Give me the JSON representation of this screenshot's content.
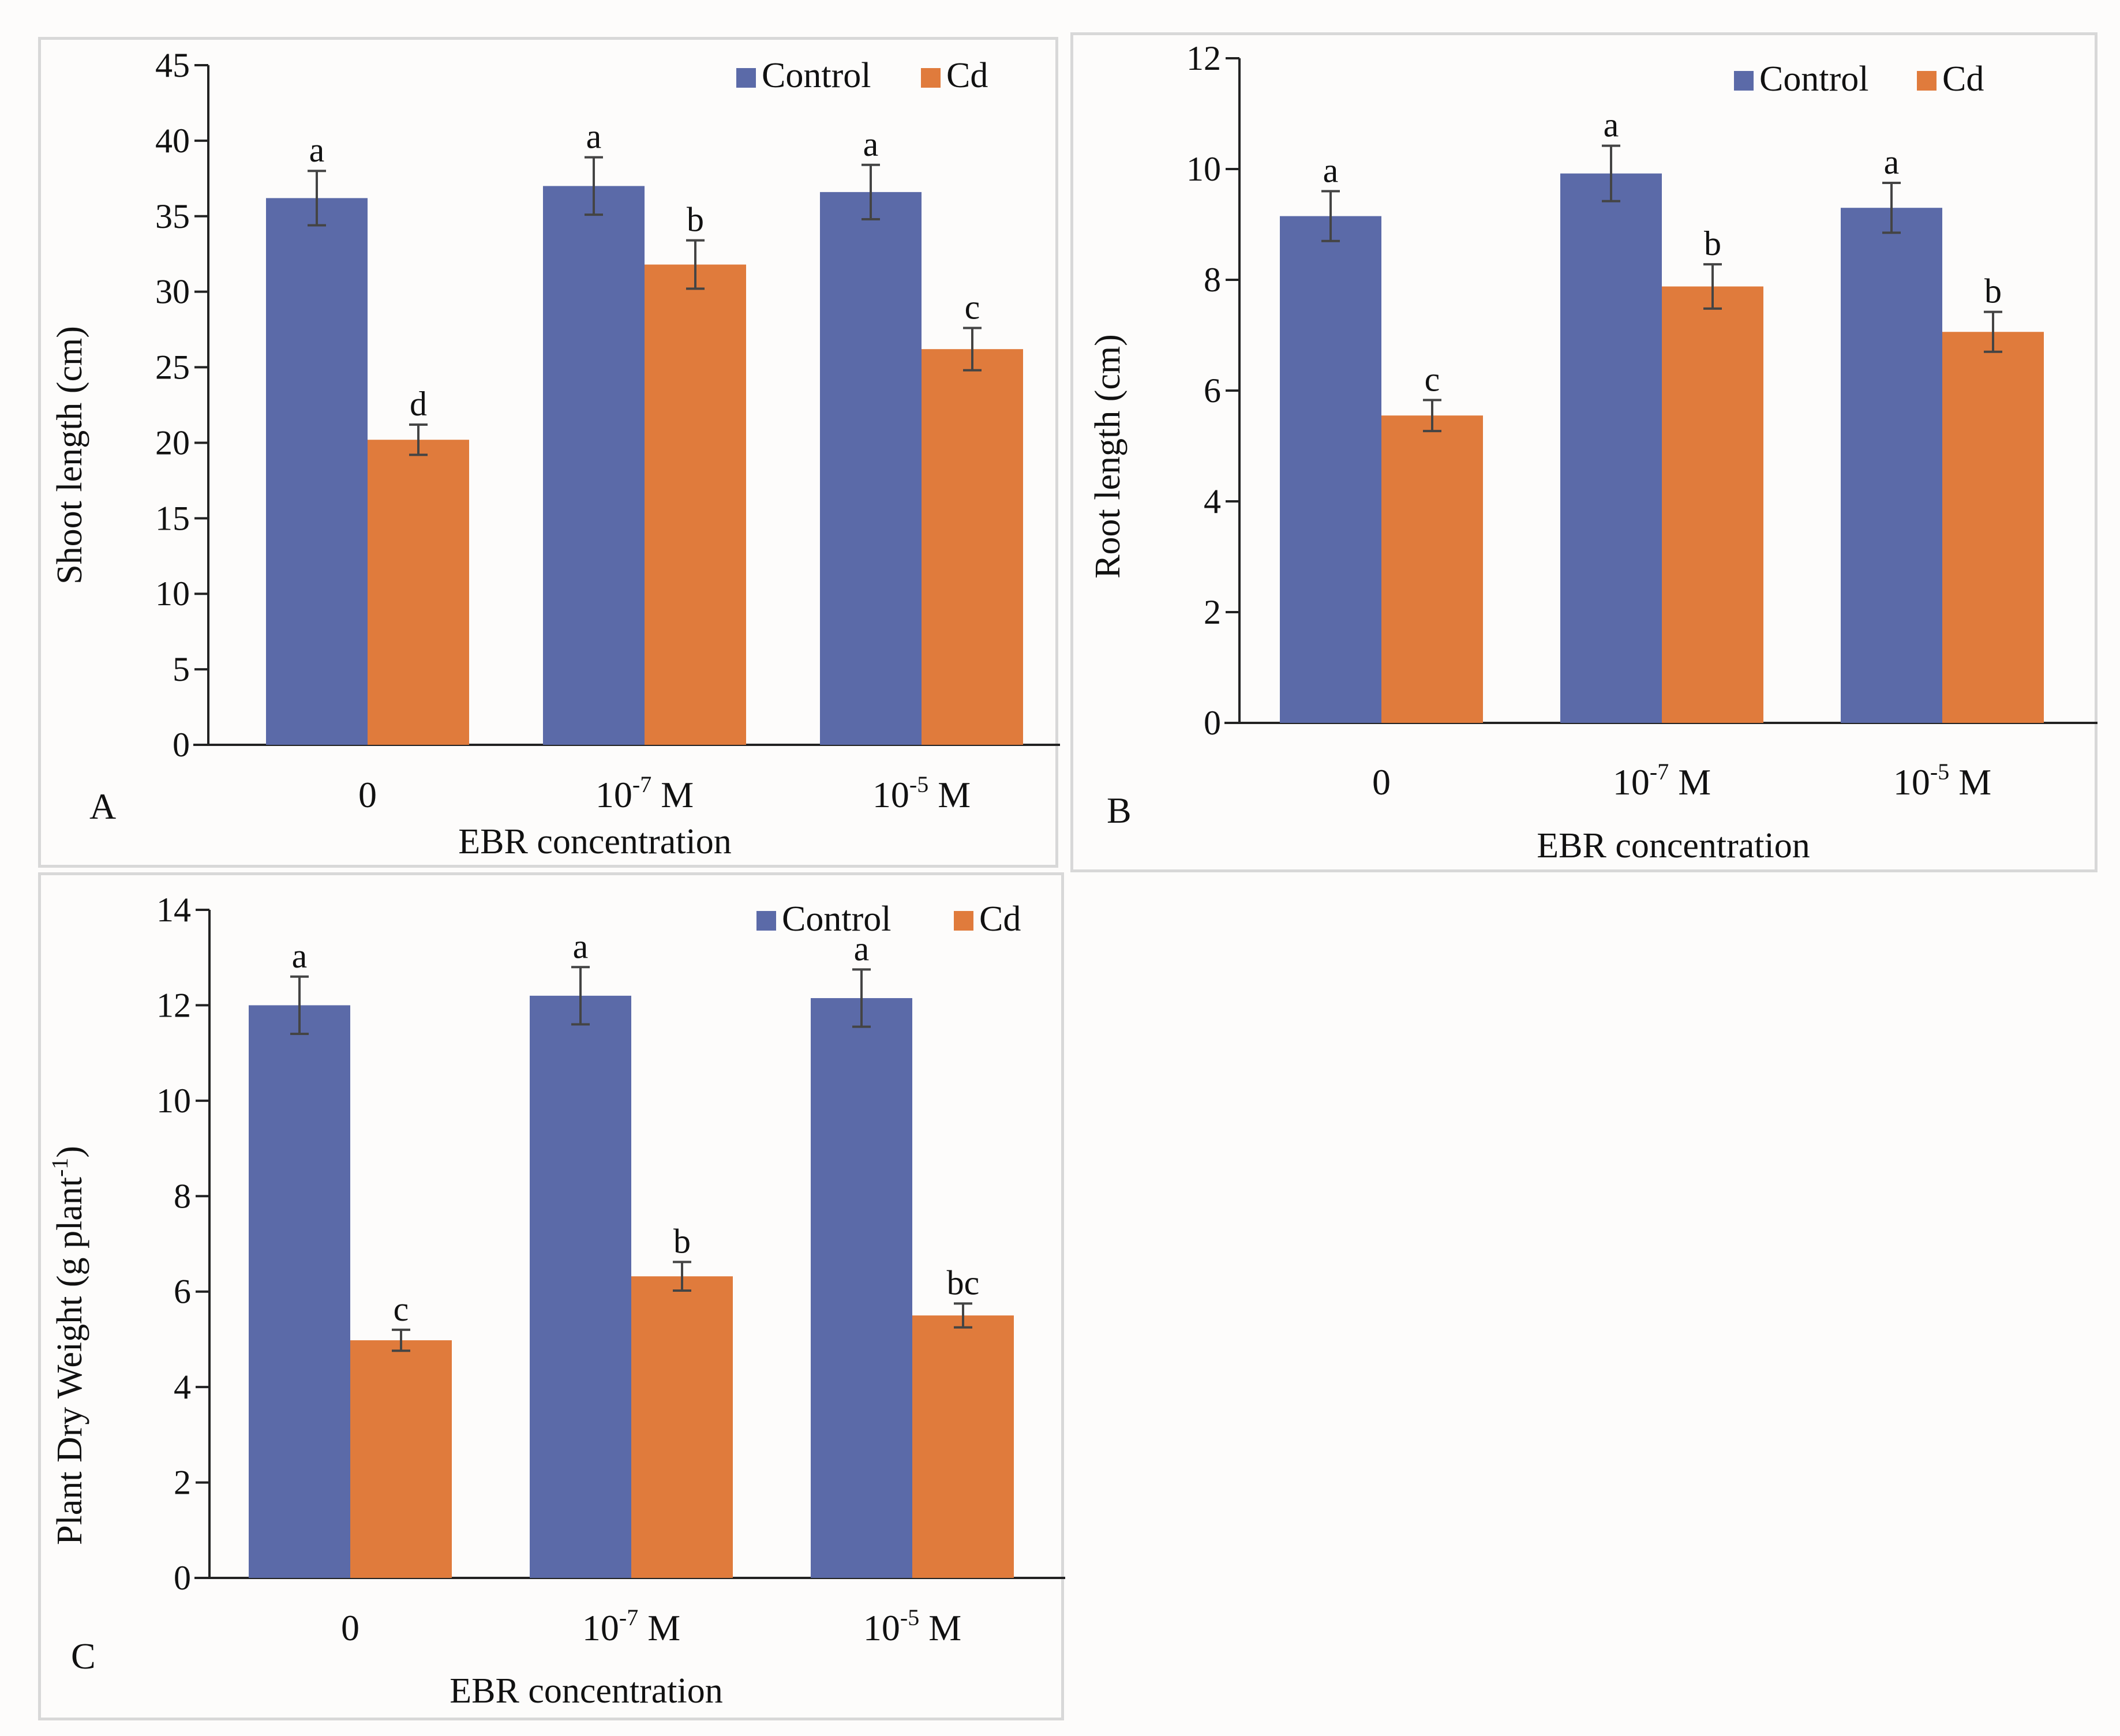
{
  "colors": {
    "control": "#5b6aa8",
    "cd": "#e07b3c",
    "axis": "#222222",
    "error": "#444444"
  },
  "legend": {
    "control": "Control",
    "cd": "Cd"
  },
  "chart_data": [
    {
      "type": "bar",
      "panel_label": "A",
      "title": "",
      "xlabel": "EBR concentration",
      "ylabel": "Shoot length (cm)",
      "categories": [
        "0",
        "10-7 M",
        "10-5 M"
      ],
      "category_labels": [
        {
          "base": "0",
          "sup": "",
          "suffix": ""
        },
        {
          "base": "10",
          "sup": "-7",
          "suffix": " M"
        },
        {
          "base": "10",
          "sup": "-5",
          "suffix": " M"
        }
      ],
      "ylim": [
        0,
        45
      ],
      "yticks": [
        0,
        5,
        10,
        15,
        20,
        25,
        30,
        35,
        40,
        45
      ],
      "ytick_labels": [
        "0",
        "5",
        "10",
        "15",
        "20",
        "25",
        "30",
        "35",
        "40",
        "45"
      ],
      "legend_position": "top-right",
      "series": [
        {
          "name": "Control",
          "values": [
            36.2,
            37.0,
            36.6
          ],
          "errors": [
            1.8,
            1.9,
            1.8
          ],
          "letters": [
            "a",
            "a",
            "a"
          ]
        },
        {
          "name": "Cd",
          "values": [
            20.2,
            31.8,
            26.2
          ],
          "errors": [
            1.0,
            1.6,
            1.4
          ],
          "letters": [
            "d",
            "b",
            "c"
          ]
        }
      ]
    },
    {
      "type": "bar",
      "panel_label": "B",
      "title": "",
      "xlabel": "EBR concentration",
      "ylabel": "Root length (cm)",
      "categories": [
        "0",
        "10-7 M",
        "10-5 M"
      ],
      "category_labels": [
        {
          "base": "0",
          "sup": "",
          "suffix": ""
        },
        {
          "base": "10",
          "sup": "-7",
          "suffix": " M"
        },
        {
          "base": "10",
          "sup": "-5",
          "suffix": " M"
        }
      ],
      "ylim": [
        0,
        12
      ],
      "yticks": [
        0,
        2,
        4,
        6,
        8,
        10,
        12
      ],
      "ytick_labels": [
        "0",
        "2",
        "4",
        "6",
        "8",
        "10",
        "12"
      ],
      "legend_position": "top-right",
      "series": [
        {
          "name": "Control",
          "values": [
            9.15,
            9.92,
            9.3
          ],
          "errors": [
            0.45,
            0.5,
            0.45
          ],
          "letters": [
            "a",
            "a",
            "a"
          ]
        },
        {
          "name": "Cd",
          "values": [
            5.55,
            7.88,
            7.06
          ],
          "errors": [
            0.28,
            0.4,
            0.36
          ],
          "letters": [
            "c",
            "b",
            "b"
          ]
        }
      ]
    },
    {
      "type": "bar",
      "panel_label": "C",
      "title": "",
      "xlabel": "EBR concentration",
      "ylabel": "Plant Dry Weight (g plant-1)",
      "ylabel_parts": {
        "base": "Plant Dry Weight (g plant",
        "sup": "-1",
        "suffix": ")"
      },
      "categories": [
        "0",
        "10-7 M",
        "10-5 M"
      ],
      "category_labels": [
        {
          "base": "0",
          "sup": "",
          "suffix": ""
        },
        {
          "base": "10",
          "sup": "-7",
          "suffix": " M"
        },
        {
          "base": "10",
          "sup": "-5",
          "suffix": " M"
        }
      ],
      "ylim": [
        0,
        14
      ],
      "yticks": [
        0,
        2,
        4,
        6,
        8,
        10,
        12,
        14
      ],
      "ytick_labels": [
        "0",
        "2",
        "4",
        "6",
        "8",
        "10",
        "12",
        "14"
      ],
      "legend_position": "top-right",
      "series": [
        {
          "name": "Control",
          "values": [
            12.0,
            12.2,
            12.15
          ],
          "errors": [
            0.6,
            0.6,
            0.6
          ],
          "letters": [
            "a",
            "a",
            "a"
          ]
        },
        {
          "name": "Cd",
          "values": [
            4.98,
            6.32,
            5.5
          ],
          "errors": [
            0.22,
            0.3,
            0.25
          ],
          "letters": [
            "c",
            "b",
            "bc"
          ]
        }
      ]
    }
  ]
}
